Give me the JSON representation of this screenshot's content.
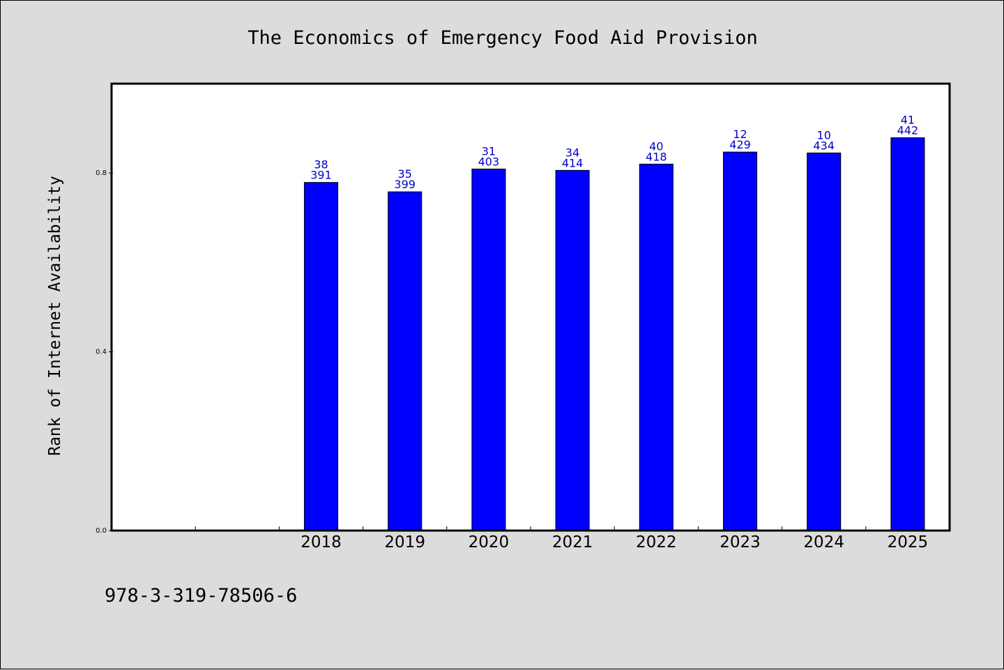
{
  "chart_data": {
    "type": "bar",
    "title": "The Economics of Emergency Food Aid Provision",
    "ylabel": "Rank of Internet Availability",
    "xlabel": "",
    "ylim": [
      0,
      1.0
    ],
    "yticks": [
      "0.0",
      "0.4",
      "0.8"
    ],
    "ytick_values": [
      0.0,
      0.4,
      0.8
    ],
    "category_slots": [
      "",
      "",
      "2018",
      "2019",
      "2020",
      "2021",
      "2022",
      "2023",
      "2024",
      "2025"
    ],
    "categories": [
      "2018",
      "2019",
      "2020",
      "2021",
      "2022",
      "2023",
      "2024",
      "2025"
    ],
    "values": [
      0.779,
      0.758,
      0.809,
      0.806,
      0.82,
      0.847,
      0.845,
      0.879
    ],
    "label_top": [
      "38",
      "35",
      "31",
      "34",
      "40",
      "12",
      "10",
      "41"
    ],
    "label_bottom": [
      "391",
      "399",
      "403",
      "414",
      "418",
      "429",
      "434",
      "442"
    ],
    "legend": "none",
    "grid": false
  },
  "colors": {
    "background": "#dcdcdc",
    "plot_background": "#ffffff",
    "bar": "#0000ff",
    "bar_edge": "#000000",
    "data_label": "#0000cc"
  },
  "footer": {
    "code": "978-3-319-78506-6"
  }
}
